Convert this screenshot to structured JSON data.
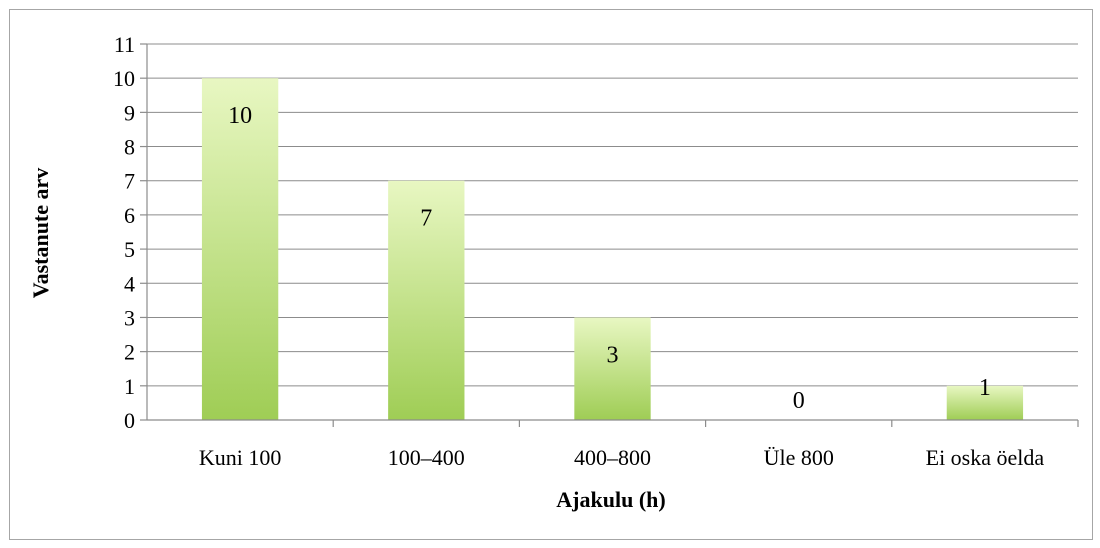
{
  "chart_data": {
    "type": "bar",
    "title": "",
    "xlabel": "Ajakulu (h)",
    "ylabel": "Vastanute arv",
    "categories": [
      "Kuni 100",
      "100–400",
      "400–800",
      "Üle 800",
      "Ei oska öelda"
    ],
    "values": [
      10,
      7,
      3,
      0,
      1
    ],
    "data_labels": [
      "10",
      "7",
      "3",
      "0",
      "1"
    ],
    "ylim": [
      0,
      11
    ],
    "yticks": [
      "0",
      "1",
      "2",
      "3",
      "4",
      "5",
      "6",
      "7",
      "8",
      "9",
      "10",
      "11"
    ],
    "grid": true,
    "legend": "none",
    "colors": {
      "bar_top": "#e8f7c2",
      "bar_bottom": "#9fcd55",
      "grid": "#8c8c8c",
      "frame": "#a6a6a6"
    }
  }
}
